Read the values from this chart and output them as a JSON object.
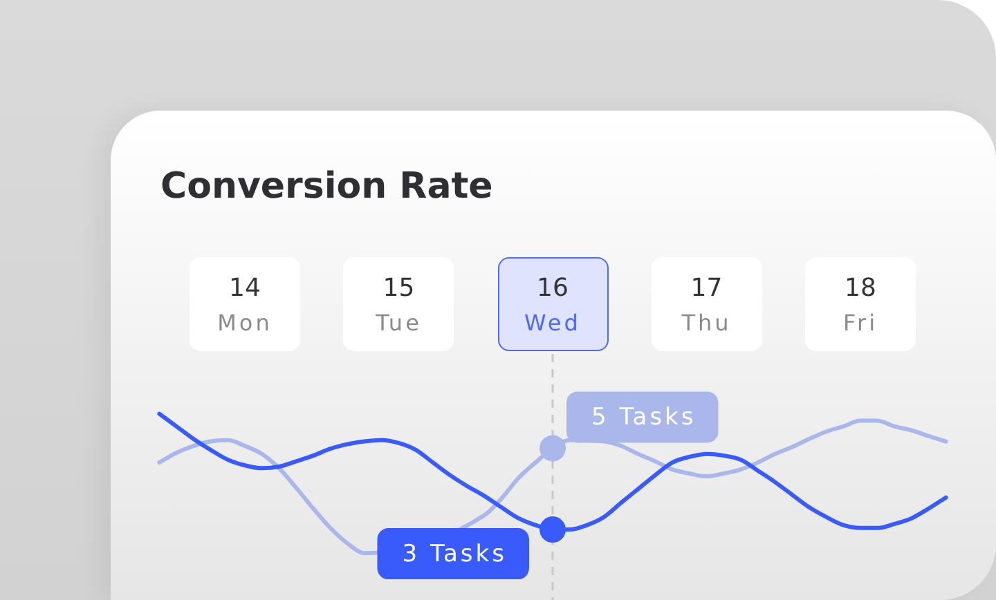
{
  "chart_data": {
    "type": "line",
    "title": "Conversion Rate",
    "categories": [
      null,
      null,
      null,
      null,
      null,
      "14 Mon",
      null,
      null,
      null,
      null,
      null,
      null,
      null,
      null,
      "15 Tue",
      null,
      null,
      null,
      null,
      null,
      null,
      null,
      null,
      "16 Wed",
      null,
      null,
      null,
      null,
      null,
      null,
      null,
      null,
      "17 Thu",
      null,
      null,
      null,
      null,
      null,
      null,
      null,
      null,
      "18 Fri",
      null,
      null,
      null,
      null,
      null
    ],
    "series": [
      {
        "color": "#3a5bfb",
        "values": [
          5.85,
          5.54,
          5.23,
          4.96,
          4.72,
          4.58,
          4.51,
          4.55,
          4.68,
          4.82,
          4.99,
          5.1,
          5.17,
          5.2,
          5.13,
          4.96,
          4.65,
          4.34,
          4.07,
          3.83,
          3.55,
          3.28,
          3.11,
          3,
          3,
          3.11,
          3.31,
          3.66,
          4,
          4.34,
          4.65,
          4.79,
          4.86,
          4.82,
          4.72,
          4.45,
          4.17,
          3.86,
          3.55,
          3.31,
          3.11,
          3.04,
          3.04,
          3.14,
          3.28,
          3.52,
          3.79
        ],
        "value_labels": [
          null,
          null,
          null,
          null,
          null,
          null,
          null,
          null,
          null,
          null,
          null,
          null,
          null,
          null,
          null,
          null,
          null,
          null,
          null,
          null,
          null,
          null,
          null,
          "3 Tasks",
          null,
          null,
          null,
          null,
          null,
          null,
          null,
          null,
          null,
          null,
          null,
          null,
          null,
          null,
          null,
          null,
          null,
          null,
          null,
          null,
          null,
          null,
          null
        ]
      },
      {
        "color": "#a9b7ea",
        "values": [
          4.65,
          4.89,
          5.06,
          5.17,
          5.2,
          5.06,
          4.86,
          4.51,
          4.03,
          3.52,
          3.04,
          2.66,
          2.42,
          null,
          null,
          null,
          null,
          null,
          null,
          3.35,
          3.76,
          4.27,
          4.65,
          5,
          5.2,
          null,
          5.17,
          5.06,
          4.86,
          4.68,
          4.48,
          4.38,
          4.31,
          4.38,
          4.48,
          4.65,
          4.86,
          5.03,
          5.23,
          5.41,
          5.54,
          5.68,
          5.68,
          5.54,
          5.44,
          5.3,
          5.17
        ],
        "value_labels": [
          null,
          null,
          null,
          null,
          null,
          null,
          null,
          null,
          null,
          null,
          null,
          null,
          null,
          null,
          null,
          null,
          null,
          null,
          null,
          null,
          null,
          null,
          null,
          "5 Tasks",
          null,
          null,
          null,
          null,
          null,
          null,
          null,
          null,
          null,
          null,
          null,
          null,
          null,
          null,
          null,
          null,
          null,
          null,
          null,
          null,
          null,
          null,
          null
        ]
      }
    ],
    "ref_lines": [
      {
        "axis": "x",
        "value": "16 Wed",
        "color": "#c8c8c8",
        "line_style": "dashed"
      }
    ],
    "grid": false,
    "legend": false,
    "tick_labels": "x",
    "marker": "none",
    "line_style": "solid"
  }
}
